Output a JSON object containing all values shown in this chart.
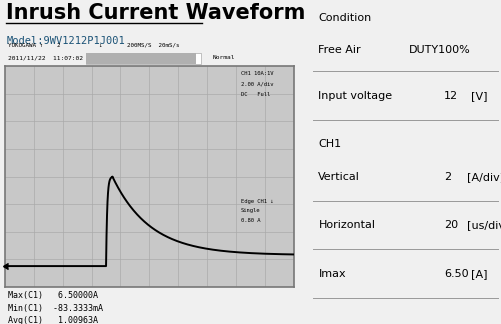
{
  "title": "Inrush Current Waveform",
  "model": "Model:9WV1212P1J001",
  "bg_color": "#f0f0f0",
  "scope_bg": "#c8c8c8",
  "scope_grid_color": "#aaaaaa",
  "condition_title": "Condition",
  "condition_line1": "Free Air",
  "condition_val1": "DUTY100%",
  "input_label": "Input voltage",
  "input_val": "12",
  "input_unit": "[V]",
  "ch1_label": "CH1",
  "vertical_label": "Vertical",
  "vertical_val": "2",
  "vertical_unit": "[A/div]",
  "horizontal_label": "Horizontal",
  "horizontal_val": "20",
  "horizontal_unit": "[us/div]",
  "imax_label": "Imax",
  "imax_val": "6.50",
  "imax_unit": "[A]",
  "grid_nx": 10,
  "grid_ny": 8,
  "waveform_color": "#000000",
  "text_color": "#000000",
  "divider_color": "#999999"
}
